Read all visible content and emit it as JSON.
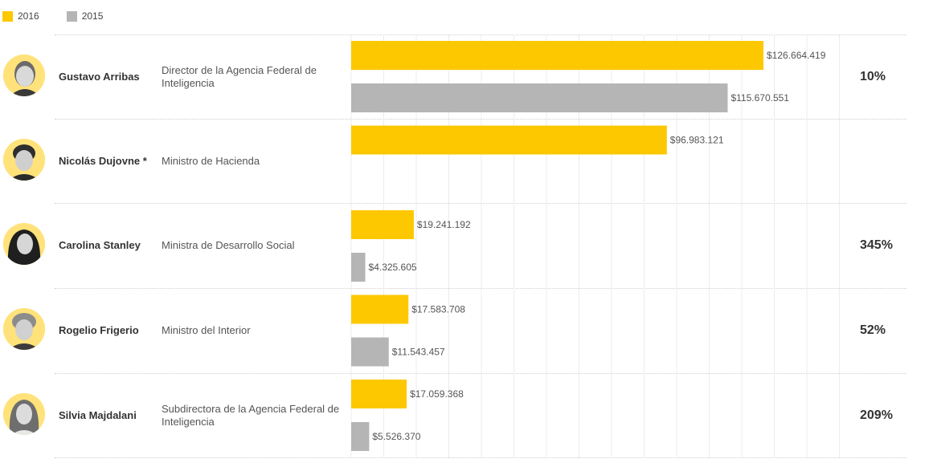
{
  "legend": [
    {
      "label": "2016",
      "color": "#fdc800"
    },
    {
      "label": "2015",
      "color": "#b5b5b5"
    }
  ],
  "colors": {
    "y2016": "#fdc800",
    "y2015": "#b5b5b5",
    "avatar_bg": "#ffe27a"
  },
  "people": [
    {
      "name": "Gustavo Arribas",
      "role": "Director de la Agencia Federal de Inteligencia",
      "pct": "10%",
      "avatar": "gustavo-arribas-avatar"
    },
    {
      "name": "Nicolás Dujovne *",
      "role": "Ministro de Hacienda",
      "pct": "",
      "avatar": "nicolas-dujovne-avatar"
    },
    {
      "name": "Carolina Stanley",
      "role": "Ministra de Desarrollo Social",
      "pct": "345%",
      "avatar": "carolina-stanley-avatar"
    },
    {
      "name": "Rogelio Frigerio",
      "role": "Ministro del Interior",
      "pct": "52%",
      "avatar": "rogelio-frigerio-avatar"
    },
    {
      "name": "Silvia Majdalani",
      "role": "Subdirectora de la Agencia Federal de Inteligencia",
      "pct": "209%",
      "avatar": "silvia-majdalani-avatar"
    }
  ],
  "chart_data": {
    "type": "bar",
    "orientation": "horizontal",
    "categories": [
      "Gustavo Arribas",
      "Nicolás Dujovne *",
      "Carolina Stanley",
      "Rogelio Frigerio",
      "Silvia Majdalani"
    ],
    "series": [
      {
        "name": "2016",
        "color": "#fdc800",
        "values": [
          126664419,
          96983121,
          19241192,
          17583708,
          17059368
        ],
        "labels": [
          "$126.664.419",
          "$96.983.121",
          "$19.241.192",
          "$17.583.708",
          "$17.059.368"
        ]
      },
      {
        "name": "2015",
        "color": "#b5b5b5",
        "values": [
          115670551,
          null,
          4325605,
          11543457,
          5526370
        ],
        "labels": [
          "$115.670.551",
          "",
          "$4.325.605",
          "$11.543.457",
          "$5.526.370"
        ]
      }
    ],
    "xlim": [
      0,
      150000000
    ],
    "grid": true,
    "legend_position": "top-left"
  }
}
